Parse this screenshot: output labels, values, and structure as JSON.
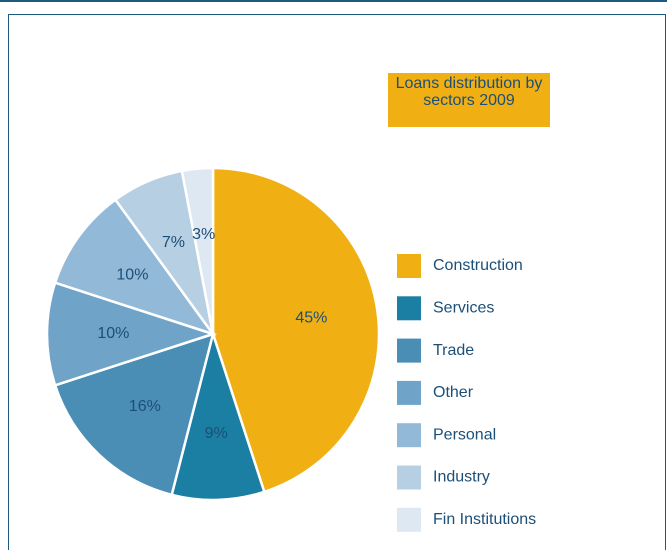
{
  "chart_data": {
    "type": "pie",
    "title": "Loans distribution by sectors 2009",
    "categories": [
      "Construction",
      "Services",
      "Trade",
      "Other",
      "Personal",
      "Industry",
      "Fin Institutions"
    ],
    "values": [
      45,
      9,
      16,
      10,
      10,
      7,
      3
    ],
    "value_labels": [
      "45%",
      "9%",
      "16%",
      "10%",
      "10%",
      "7%",
      "3%"
    ],
    "colors": [
      "#f0b014",
      "#1a7fa3",
      "#4a8db5",
      "#6fa3c8",
      "#93b9d8",
      "#b7cfe3",
      "#dde8f2"
    ],
    "legend": "right"
  }
}
